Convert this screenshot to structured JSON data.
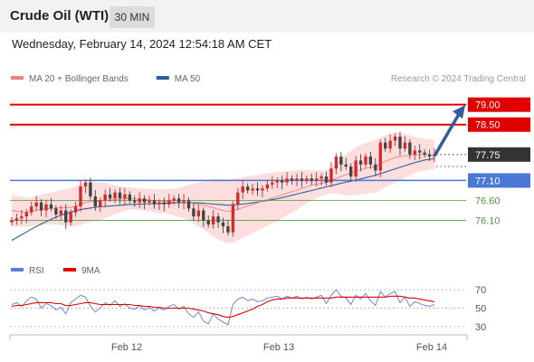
{
  "header": {
    "title": "Crude Oil (WTI)",
    "interval": "30 MIN"
  },
  "timestamp": "Wednesday, February 14, 2024 12:54:18 AM CET",
  "source": "Research © 2024 Trading Central",
  "colors": {
    "up": "#d42a2a",
    "down": "#444444",
    "band": "#fbd3d3",
    "ma20": "#f08080",
    "ma50": "#2f5d9b",
    "resistance": "#e00000",
    "pivot": "#4a78d4",
    "support": "#4e9b3a",
    "rsi": "#5b7fd6",
    "rsi_ma": "#e00000",
    "arrow": "#2f5d9b"
  },
  "chart_data": [
    {
      "type": "candlestick",
      "x_ticks": [
        "Feb 12",
        "Feb 13",
        "Feb 14"
      ],
      "ylim": [
        75.5,
        79.4
      ],
      "legend": [
        {
          "name": "MA 20 + Bollinger Bands",
          "color": "#f08080"
        },
        {
          "name": "MA 50",
          "color": "#2f5d9b"
        }
      ],
      "levels": [
        {
          "value": 79.0,
          "label": "79.00",
          "role": "resistance"
        },
        {
          "value": 78.5,
          "label": "78.50",
          "role": "resistance"
        },
        {
          "value": 77.75,
          "label": "77.75",
          "role": "last"
        },
        {
          "value": 77.1,
          "label": "77.10",
          "role": "pivot"
        },
        {
          "value": 76.6,
          "label": "76.60",
          "role": "support"
        },
        {
          "value": 76.1,
          "label": "76.10",
          "role": "support"
        }
      ],
      "arrow": {
        "from_value": 77.75,
        "to_value": 78.92
      },
      "closes": [
        76.1,
        76.15,
        76.2,
        76.3,
        76.45,
        76.55,
        76.35,
        76.5,
        76.4,
        76.25,
        76.35,
        76.05,
        76.3,
        76.45,
        76.95,
        77.05,
        76.7,
        76.45,
        76.6,
        76.75,
        76.65,
        76.8,
        76.65,
        76.75,
        76.6,
        76.55,
        76.65,
        76.55,
        76.6,
        76.5,
        76.55,
        76.5,
        76.6,
        76.65,
        76.55,
        76.6,
        76.4,
        76.2,
        76.35,
        76.1,
        76.0,
        76.2,
        76.05,
        75.95,
        75.8,
        76.5,
        76.8,
        76.95,
        76.85,
        76.9,
        76.85,
        76.9,
        77.0,
        77.05,
        77.1,
        77.05,
        77.15,
        77.1,
        77.15,
        77.1,
        77.15,
        77.1,
        77.15,
        77.2,
        77.05,
        77.4,
        77.7,
        77.5,
        77.45,
        77.2,
        77.6,
        77.5,
        77.7,
        77.5,
        77.35,
        78.05,
        77.9,
        78.1,
        78.2,
        77.9,
        78.05,
        77.75,
        77.85,
        77.8,
        77.75,
        77.7,
        77.75
      ],
      "ma20": [
        76.35,
        76.33,
        76.32,
        76.3,
        76.32,
        76.35,
        76.37,
        76.39,
        76.4,
        76.41,
        76.42,
        76.42,
        76.43,
        76.45,
        76.5,
        76.55,
        76.57,
        76.58,
        76.59,
        76.6,
        76.61,
        76.62,
        76.63,
        76.64,
        76.65,
        76.64,
        76.63,
        76.62,
        76.61,
        76.6,
        76.58,
        76.58,
        76.57,
        76.56,
        76.55,
        76.55,
        76.54,
        76.52,
        76.5,
        76.48,
        76.45,
        76.42,
        76.38,
        76.35,
        76.32,
        76.34,
        76.38,
        76.42,
        76.46,
        76.5,
        76.54,
        76.58,
        76.62,
        76.66,
        76.7,
        76.74,
        76.78,
        76.82,
        76.86,
        76.9,
        76.94,
        76.98,
        77.0,
        77.03,
        77.05,
        77.1,
        77.15,
        77.2,
        77.25,
        77.28,
        77.33,
        77.37,
        77.4,
        77.43,
        77.45,
        77.52,
        77.58,
        77.63,
        77.68,
        77.7,
        77.72,
        77.73,
        77.74,
        77.75,
        77.75,
        77.75,
        77.75
      ],
      "bb_width": [
        0.4,
        0.38,
        0.37,
        0.36,
        0.36,
        0.37,
        0.38,
        0.39,
        0.4,
        0.42,
        0.44,
        0.46,
        0.48,
        0.5,
        0.52,
        0.52,
        0.5,
        0.48,
        0.46,
        0.44,
        0.4,
        0.36,
        0.33,
        0.3,
        0.28,
        0.27,
        0.27,
        0.28,
        0.28,
        0.29,
        0.3,
        0.3,
        0.32,
        0.34,
        0.36,
        0.4,
        0.45,
        0.5,
        0.55,
        0.6,
        0.66,
        0.72,
        0.76,
        0.78,
        0.8,
        0.8,
        0.78,
        0.76,
        0.74,
        0.72,
        0.7,
        0.68,
        0.66,
        0.64,
        0.62,
        0.58,
        0.55,
        0.52,
        0.5,
        0.46,
        0.42,
        0.38,
        0.35,
        0.32,
        0.3,
        0.32,
        0.38,
        0.45,
        0.52,
        0.56,
        0.6,
        0.62,
        0.64,
        0.65,
        0.66,
        0.66,
        0.65,
        0.64,
        0.63,
        0.6,
        0.55,
        0.5,
        0.45,
        0.42,
        0.4,
        0.38,
        0.36
      ],
      "ma50": [
        75.6,
        75.67,
        75.74,
        75.81,
        75.88,
        75.95,
        76.01,
        76.07,
        76.13,
        76.18,
        76.23,
        76.27,
        76.31,
        76.34,
        76.37,
        76.39,
        76.41,
        76.43,
        76.44,
        76.45,
        76.46,
        76.47,
        76.48,
        76.49,
        76.5,
        76.5,
        76.51,
        76.51,
        76.52,
        76.52,
        76.52,
        76.53,
        76.53,
        76.54,
        76.54,
        76.54,
        76.54,
        76.54,
        76.54,
        76.53,
        76.52,
        76.51,
        76.5,
        76.49,
        76.48,
        76.49,
        76.5,
        76.51,
        76.52,
        76.54,
        76.56,
        76.58,
        76.6,
        76.62,
        76.64,
        76.67,
        76.7,
        76.73,
        76.76,
        76.79,
        76.82,
        76.85,
        76.88,
        76.91,
        76.94,
        76.97,
        77.0,
        77.03,
        77.06,
        77.08,
        77.11,
        77.14,
        77.17,
        77.2,
        77.23,
        77.27,
        77.31,
        77.35,
        77.39,
        77.43,
        77.47,
        77.51,
        77.55,
        77.58,
        77.61,
        77.63,
        77.65
      ]
    },
    {
      "type": "line",
      "ylim": [
        25,
        80
      ],
      "y_ticks": [
        70,
        50,
        30
      ],
      "legend": [
        {
          "name": "RSI",
          "color": "#5b7fd6"
        },
        {
          "name": "9MA",
          "color": "#e00000"
        }
      ],
      "series": [
        {
          "name": "RSI",
          "values": [
            54,
            56,
            52,
            58,
            62,
            60,
            50,
            55,
            53,
            48,
            51,
            44,
            56,
            60,
            64,
            62,
            52,
            46,
            50,
            56,
            53,
            58,
            52,
            55,
            50,
            49,
            53,
            48,
            51,
            47,
            50,
            48,
            52,
            54,
            49,
            52,
            44,
            40,
            46,
            36,
            33,
            44,
            38,
            35,
            32,
            54,
            60,
            62,
            58,
            60,
            57,
            58,
            61,
            62,
            63,
            60,
            63,
            61,
            63,
            60,
            62,
            60,
            62,
            64,
            55,
            64,
            70,
            63,
            61,
            54,
            64,
            60,
            66,
            58,
            53,
            68,
            62,
            66,
            68,
            56,
            62,
            52,
            57,
            55,
            53,
            52,
            54
          ]
        },
        {
          "name": "9MA",
          "values": [
            52,
            53,
            53,
            54,
            55,
            56,
            56,
            56,
            56,
            55,
            55,
            53,
            53,
            54,
            55,
            56,
            56,
            55,
            54,
            54,
            54,
            54,
            54,
            54,
            54,
            53,
            53,
            52,
            52,
            51,
            51,
            50,
            50,
            50,
            50,
            50,
            50,
            49,
            48,
            47,
            45,
            44,
            43,
            41,
            40,
            41,
            43,
            45,
            47,
            49,
            52,
            54,
            57,
            59,
            60,
            60,
            61,
            61,
            61,
            61,
            61,
            61,
            61,
            61,
            61,
            61,
            62,
            62,
            62,
            62,
            62,
            62,
            62,
            62,
            62,
            62,
            62,
            63,
            63,
            63,
            62,
            61,
            61,
            60,
            59,
            58,
            57
          ]
        }
      ]
    }
  ]
}
